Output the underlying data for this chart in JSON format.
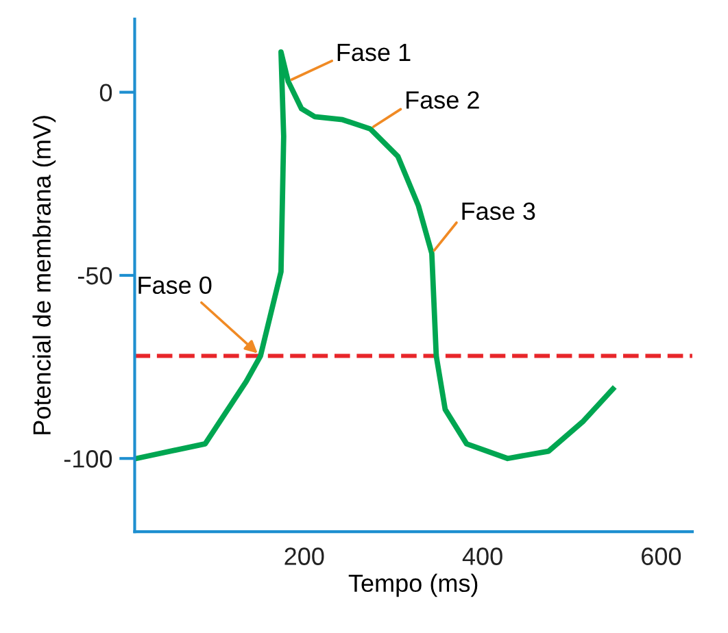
{
  "chart_data": {
    "type": "line",
    "xlabel": "Tempo (ms)",
    "ylabel": "Potencial de membrana (mV)",
    "x": [
      12,
      89,
      135,
      151,
      174,
      177,
      174,
      182,
      197,
      212,
      243,
      274,
      305,
      328,
      343,
      348,
      358,
      382,
      428,
      474,
      512,
      546
    ],
    "series": [
      {
        "color": "#00a651",
        "values": [
          -100,
          -96,
          -79,
          -72,
          -49,
          -12,
          11,
          3,
          -4.5,
          -6.7,
          -7.5,
          -10,
          -17.5,
          -31,
          -44,
          -72,
          -86.6,
          -96,
          -100,
          -98,
          -90,
          -81
        ]
      }
    ],
    "xlim": [
      10,
      635
    ],
    "ylim": [
      -120,
      20
    ],
    "xticks": [
      200,
      400,
      600
    ],
    "yticks": [
      -100,
      -50,
      0
    ],
    "ref_lines": [
      {
        "axis": "y",
        "value": -72,
        "color": "#e8262a",
        "line_style": "dashed"
      }
    ],
    "annotations": [
      {
        "text": "Fase 0",
        "x": 151,
        "y": -72
      },
      {
        "text": "Fase 1",
        "x": 182,
        "y": 3
      },
      {
        "text": "Fase 2",
        "x": 274,
        "y": -10
      },
      {
        "text": "Fase 3",
        "x": 343,
        "y": -44
      }
    ],
    "grid": false,
    "legend": false
  }
}
